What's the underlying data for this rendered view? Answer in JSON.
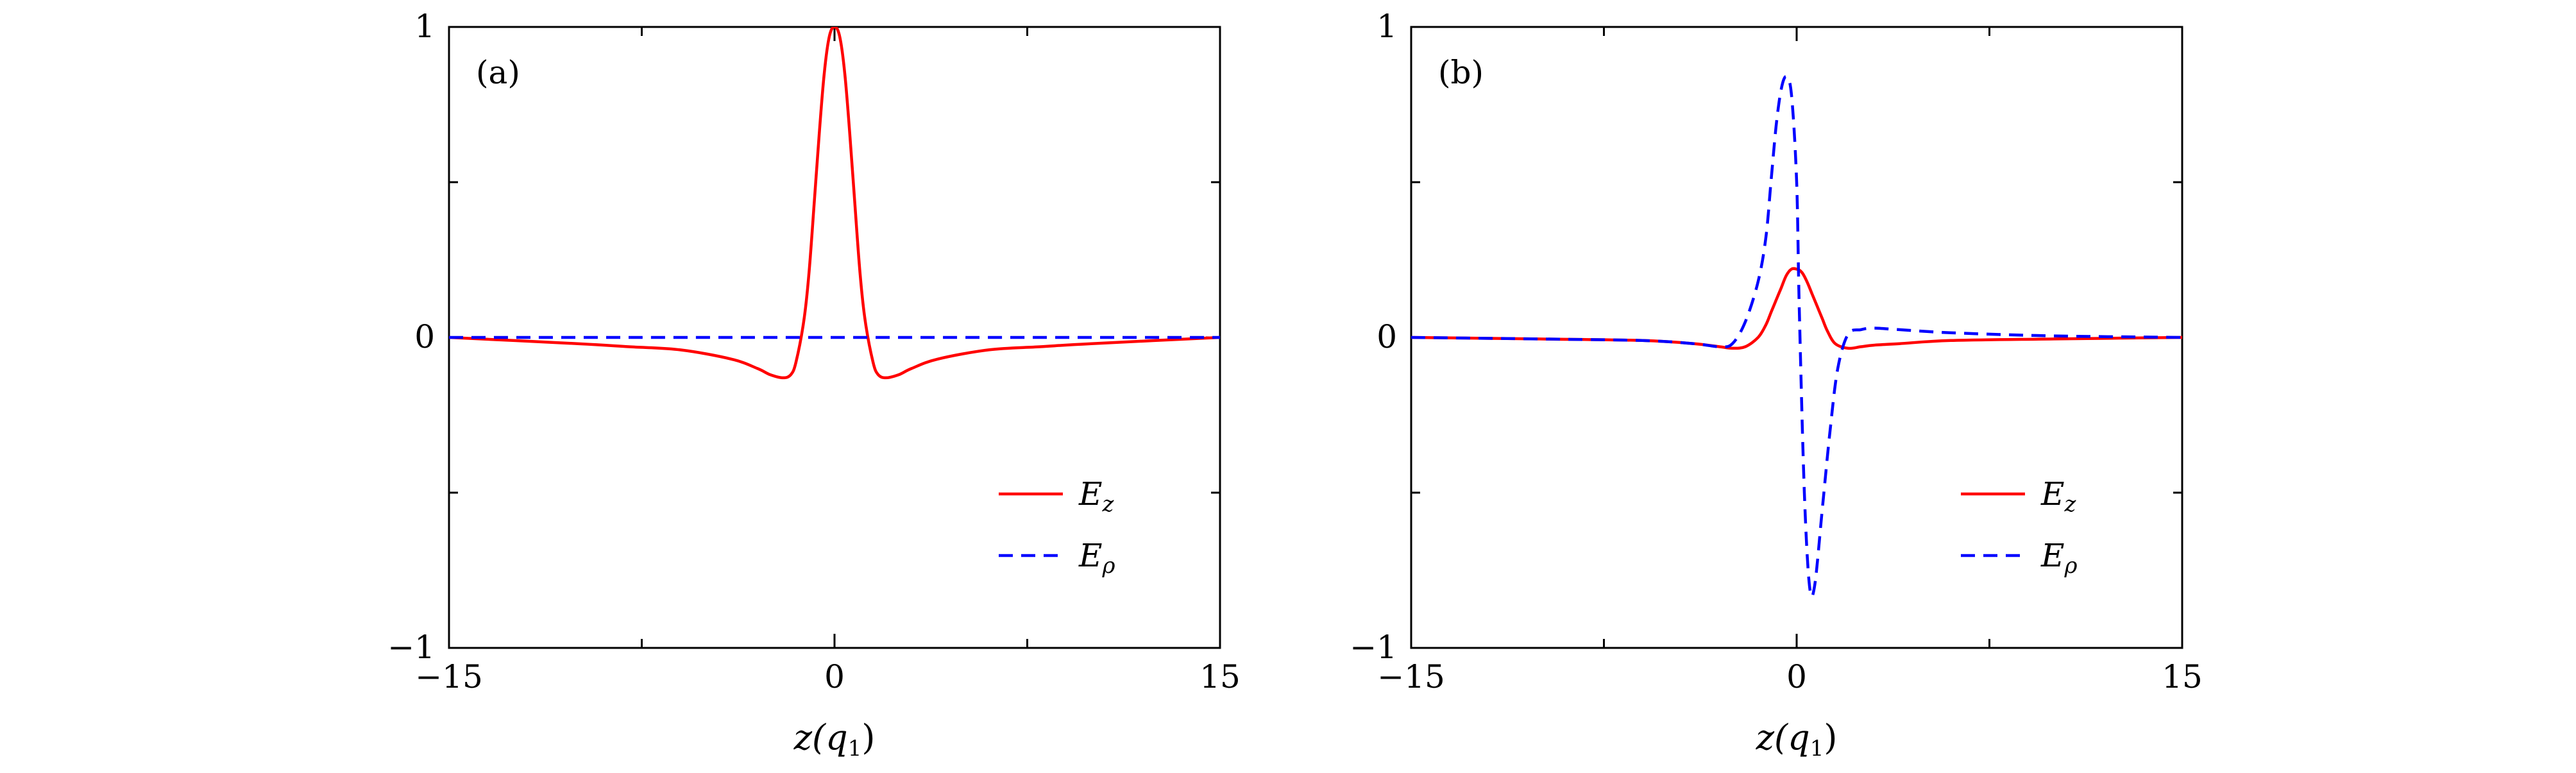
{
  "chart_data": [
    {
      "type": "line",
      "panel_label": "(a)",
      "xlabel": "z(q1)",
      "xlabel_parts": {
        "main": "z(q",
        "sub": "1",
        "close": ")"
      },
      "xlim": [
        -15,
        15
      ],
      "ylim": [
        -1,
        1
      ],
      "x_ticks": [
        "−15",
        "0",
        "15"
      ],
      "y_ticks": [
        "1",
        "0",
        "−1"
      ],
      "grid": false,
      "legend_position": "bottom-right",
      "series": [
        {
          "name": "Ez",
          "name_parts": {
            "main": "E",
            "sub": "z"
          },
          "color": "#ff0000",
          "dash": "solid",
          "x": [
            -15,
            -10,
            -8,
            -6,
            -4,
            -3,
            -2.5,
            -2,
            -1.7,
            -1.5,
            -1.2,
            -1,
            -0.8,
            -0.6,
            -0.4,
            -0.2,
            0,
            0.2,
            0.4,
            0.6,
            0.8,
            1,
            1.2,
            1.5,
            1.7,
            2,
            2.5,
            3,
            4,
            6,
            8,
            10,
            15
          ],
          "y": [
            0,
            -0.02,
            -0.03,
            -0.04,
            -0.07,
            -0.1,
            -0.12,
            -0.13,
            -0.12,
            -0.08,
            0.05,
            0.2,
            0.42,
            0.65,
            0.85,
            0.97,
            1,
            0.97,
            0.85,
            0.65,
            0.42,
            0.2,
            0.05,
            -0.08,
            -0.12,
            -0.13,
            -0.12,
            -0.1,
            -0.07,
            -0.04,
            -0.03,
            -0.02,
            0
          ]
        },
        {
          "name": "Eρ",
          "name_parts": {
            "main": "E",
            "sub": "ρ"
          },
          "color": "#0000ff",
          "dash": "dashed",
          "x": [
            -15,
            15
          ],
          "y": [
            0,
            0
          ]
        }
      ]
    },
    {
      "type": "line",
      "panel_label": "(b)",
      "xlabel": "z(q1)",
      "xlabel_parts": {
        "main": "z(q",
        "sub": "1",
        "close": ")"
      },
      "xlim": [
        -15,
        15
      ],
      "ylim": [
        -1,
        1
      ],
      "x_ticks": [
        "−15",
        "0",
        "15"
      ],
      "y_ticks": [
        "1",
        "0",
        "−1"
      ],
      "grid": false,
      "legend_position": "bottom-right",
      "series": [
        {
          "name": "Ez",
          "name_parts": {
            "main": "E",
            "sub": "z"
          },
          "color": "#ff0000",
          "dash": "solid",
          "x": [
            -15,
            -10,
            -6,
            -4,
            -3,
            -2.5,
            -2,
            -1.5,
            -1.2,
            -1,
            -0.8,
            -0.6,
            -0.4,
            -0.2,
            0,
            0.2,
            0.4,
            0.6,
            0.8,
            1,
            1.2,
            1.5,
            2,
            2.5,
            3,
            4,
            6,
            10,
            15
          ],
          "y": [
            0,
            -0.005,
            -0.01,
            -0.02,
            -0.03,
            -0.035,
            -0.03,
            0.0,
            0.04,
            0.08,
            0.12,
            0.16,
            0.2,
            0.22,
            0.22,
            0.21,
            0.18,
            0.14,
            0.1,
            0.06,
            0.02,
            -0.02,
            -0.035,
            -0.03,
            -0.025,
            -0.02,
            -0.01,
            -0.005,
            0
          ]
        },
        {
          "name": "Eρ",
          "name_parts": {
            "main": "E",
            "sub": "ρ"
          },
          "color": "#0000ff",
          "dash": "dashed",
          "x": [
            -15,
            -10,
            -6,
            -4,
            -3,
            -2.5,
            -2,
            -1.5,
            -1.2,
            -1,
            -0.8,
            -0.6,
            -0.4,
            -0.2,
            0,
            0.1,
            0.3,
            0.5,
            0.7,
            1,
            1.3,
            1.6,
            2,
            2.5,
            3,
            4,
            6,
            10,
            15
          ],
          "y": [
            0,
            -0.005,
            -0.01,
            -0.02,
            -0.03,
            -0.02,
            0.05,
            0.18,
            0.32,
            0.5,
            0.68,
            0.8,
            0.84,
            0.78,
            0.5,
            0.1,
            -0.5,
            -0.8,
            -0.8,
            -0.55,
            -0.3,
            -0.1,
            0.01,
            0.025,
            0.03,
            0.025,
            0.015,
            0.005,
            0
          ]
        }
      ]
    }
  ]
}
